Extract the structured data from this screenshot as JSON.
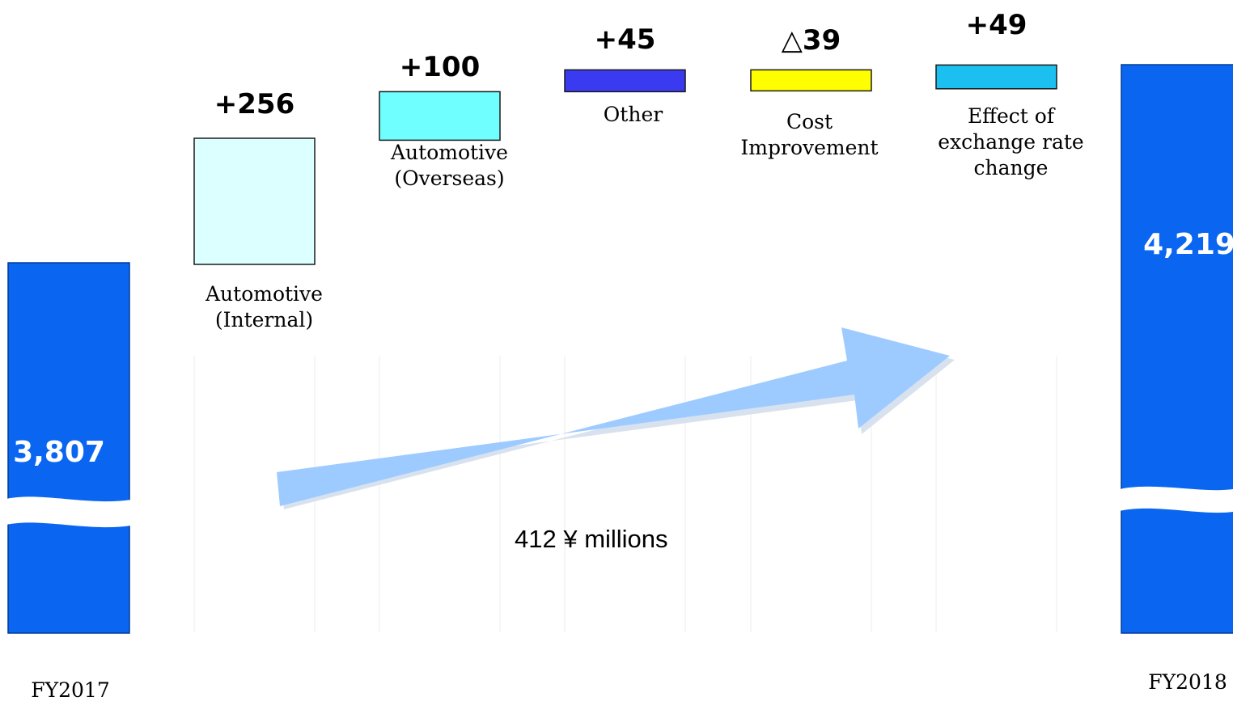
{
  "chart_data": {
    "type": "waterfall",
    "unit_label": "412 ¥ millions",
    "start": {
      "label": "FY2017",
      "value": 3807,
      "value_label": "3,807",
      "color": "#0a66f0"
    },
    "end": {
      "label": "FY2018",
      "value": 4219,
      "value_label": "4,219",
      "color": "#0a66f0"
    },
    "steps": [
      {
        "name": "Automotive (Internal)",
        "label_lines": [
          "Automotive",
          "(Internal)"
        ],
        "value": 256,
        "value_label": "+256",
        "color": "#dcffff"
      },
      {
        "name": "Automotive (Overseas)",
        "label_lines": [
          "Automotive",
          "(Overseas)"
        ],
        "value": 100,
        "value_label": "+100",
        "color": "#6fffff"
      },
      {
        "name": "Other",
        "label_lines": [
          "Other"
        ],
        "value": 45,
        "value_label": "+45",
        "color": "#3a3af0"
      },
      {
        "name": "Cost Improvement",
        "label_lines": [
          "Cost",
          "Improvement"
        ],
        "value": -39,
        "value_label": "△39",
        "color": "#ffff00"
      },
      {
        "name": "Effect of exchange rate change",
        "label_lines": [
          "Effect of",
          "exchange rate",
          "change"
        ],
        "value": 49,
        "value_label": "+49",
        "color": "#1cc0f0"
      }
    ],
    "arrow_color": "#9ecbff",
    "grid": true
  }
}
